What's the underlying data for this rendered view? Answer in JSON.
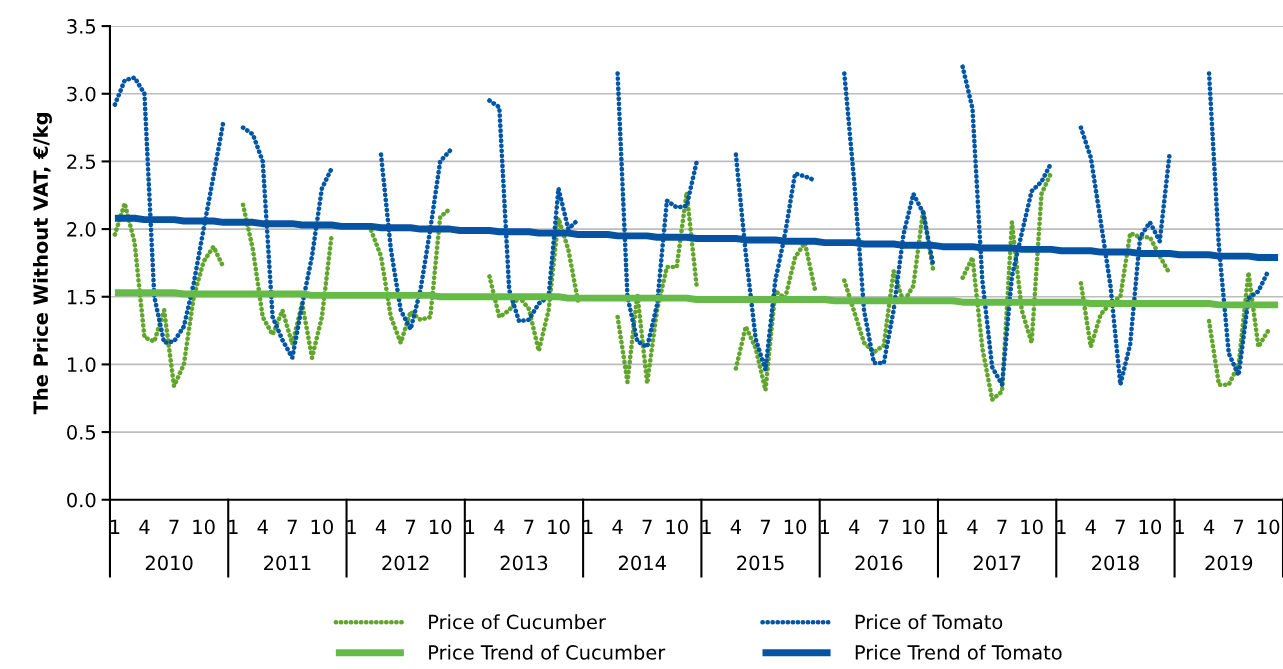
{
  "chart_data": {
    "type": "line",
    "ylabel": "The Price Without VAT, €/kg",
    "categories": [
      "1",
      null,
      null,
      "4",
      null,
      null,
      "7",
      null,
      null,
      "10",
      null,
      null,
      "1",
      null,
      null,
      "4",
      null,
      null,
      "7",
      null,
      null,
      "10",
      null,
      null,
      "1",
      null,
      null,
      "4",
      null,
      null,
      "7",
      null,
      null,
      "10",
      null,
      null,
      "1",
      null,
      null,
      "4",
      null,
      null,
      "7",
      null,
      null,
      "10",
      null,
      null,
      "1",
      null,
      null,
      "4",
      null,
      null,
      "7",
      null,
      null,
      "10",
      null,
      null,
      "1",
      null,
      null,
      "4",
      null,
      null,
      "7",
      null,
      null,
      "10",
      null,
      null,
      "1",
      null,
      null,
      "4",
      null,
      null,
      "7",
      null,
      null,
      "10",
      null,
      null,
      "1",
      null,
      null,
      "4",
      null,
      null,
      "7",
      null,
      null,
      "10",
      null,
      null,
      "1",
      null,
      null,
      "4",
      null,
      null,
      "7",
      null,
      null,
      "10",
      null,
      null,
      "1",
      null,
      null,
      "4",
      null,
      null,
      "7",
      null,
      null,
      "10",
      null
    ],
    "annotations": [
      "2010",
      "2011",
      "2012",
      "2013",
      "2014",
      "2015",
      "2016",
      "2017",
      "2018",
      "2019"
    ],
    "ylim": [
      0,
      3.5
    ],
    "yticks": [
      {
        "value": 0,
        "label": "0.0"
      },
      {
        "value": 0.5,
        "label": "0.5"
      },
      {
        "value": 1,
        "label": "1.0"
      },
      {
        "value": 1.5,
        "label": "1.5"
      },
      {
        "value": 2,
        "label": "2.0"
      },
      {
        "value": 2.5,
        "label": "2.5"
      },
      {
        "value": 3,
        "label": "3.0"
      },
      {
        "value": 3.5,
        "label": "3.5"
      }
    ],
    "grid": "y",
    "legend": "bottom",
    "marker": "none",
    "series": [
      {
        "name": "Price of Cucumber",
        "color": "#62a52c",
        "line_style": "dotted",
        "values": [
          1.96,
          2.19,
          1.9,
          1.2,
          1.17,
          1.4,
          0.84,
          1.0,
          1.5,
          1.76,
          1.87,
          1.72,
          null,
          2.18,
          1.85,
          1.35,
          1.22,
          1.4,
          1.15,
          1.45,
          1.05,
          1.35,
          1.96,
          null,
          null,
          null,
          1.99,
          1.8,
          1.35,
          1.16,
          1.39,
          1.33,
          1.35,
          2.09,
          2.15,
          null,
          null,
          null,
          1.65,
          1.35,
          1.4,
          1.5,
          1.41,
          1.1,
          1.4,
          2.08,
          1.85,
          1.46,
          null,
          null,
          null,
          1.35,
          0.87,
          1.52,
          0.86,
          1.4,
          1.72,
          1.72,
          2.27,
          1.59,
          null,
          null,
          null,
          0.97,
          1.28,
          1.12,
          0.81,
          1.54,
          1.49,
          1.79,
          1.9,
          1.56,
          null,
          null,
          1.62,
          1.39,
          1.16,
          1.09,
          1.14,
          1.69,
          1.46,
          1.58,
          2.14,
          1.7,
          null,
          null,
          1.64,
          1.79,
          1.12,
          0.74,
          0.8,
          2.05,
          1.4,
          1.16,
          2.26,
          2.42,
          null,
          null,
          1.6,
          1.13,
          1.37,
          1.45,
          1.5,
          1.97,
          1.94,
          1.94,
          1.8,
          1.67,
          null,
          null,
          null,
          1.32,
          0.85,
          0.85,
          1.0,
          1.68,
          1.13,
          1.25,
          null
        ]
      },
      {
        "name": "Price of Tomato",
        "color": "#0055a5",
        "line_style": "dotted",
        "values": [
          2.92,
          3.1,
          3.12,
          3.0,
          1.5,
          1.16,
          1.17,
          1.28,
          1.6,
          2.0,
          2.39,
          2.79,
          null,
          2.75,
          2.7,
          2.5,
          1.35,
          1.18,
          1.05,
          1.44,
          1.8,
          2.3,
          2.45,
          null,
          null,
          null,
          null,
          2.55,
          1.85,
          1.4,
          1.26,
          1.55,
          2.0,
          2.5,
          2.58,
          null,
          null,
          null,
          2.95,
          2.9,
          1.55,
          1.32,
          1.33,
          1.45,
          1.5,
          2.3,
          2.0,
          2.07,
          null,
          null,
          null,
          3.15,
          1.5,
          1.17,
          1.13,
          1.44,
          2.21,
          2.16,
          2.17,
          2.49,
          null,
          null,
          null,
          2.55,
          1.82,
          1.19,
          0.96,
          1.62,
          1.97,
          2.41,
          2.39,
          2.36,
          null,
          null,
          3.15,
          2.35,
          1.4,
          1.01,
          1.01,
          1.4,
          1.96,
          2.26,
          2.12,
          1.74,
          null,
          null,
          3.2,
          2.89,
          1.62,
          0.98,
          0.85,
          1.65,
          1.97,
          2.28,
          2.35,
          2.49,
          null,
          null,
          2.75,
          2.53,
          2.06,
          1.58,
          0.85,
          1.15,
          1.94,
          2.05,
          1.91,
          2.56,
          null,
          null,
          null,
          3.15,
          1.87,
          1.08,
          0.92,
          1.49,
          1.54,
          1.69,
          null
        ]
      },
      {
        "name": "Price Trend of Cucumber",
        "color": "#66bb48",
        "line_style": "solid",
        "values": [
          1.53,
          1.53,
          1.53,
          1.53,
          1.53,
          1.53,
          1.53,
          1.52,
          1.52,
          1.52,
          1.52,
          1.52,
          1.52,
          1.52,
          1.52,
          1.52,
          1.52,
          1.52,
          1.52,
          1.52,
          1.51,
          1.51,
          1.51,
          1.51,
          1.51,
          1.51,
          1.51,
          1.51,
          1.51,
          1.51,
          1.51,
          1.51,
          1.51,
          1.5,
          1.5,
          1.5,
          1.5,
          1.5,
          1.5,
          1.5,
          1.5,
          1.5,
          1.5,
          1.5,
          1.5,
          1.5,
          1.49,
          1.49,
          1.49,
          1.49,
          1.49,
          1.49,
          1.49,
          1.49,
          1.49,
          1.49,
          1.49,
          1.49,
          1.49,
          1.48,
          1.48,
          1.48,
          1.48,
          1.48,
          1.48,
          1.48,
          1.48,
          1.48,
          1.48,
          1.48,
          1.48,
          1.48,
          1.48,
          1.47,
          1.47,
          1.47,
          1.47,
          1.47,
          1.47,
          1.47,
          1.47,
          1.47,
          1.47,
          1.47,
          1.47,
          1.47,
          1.46,
          1.46,
          1.46,
          1.46,
          1.46,
          1.46,
          1.46,
          1.46,
          1.46,
          1.46,
          1.46,
          1.46,
          1.46,
          1.45,
          1.45,
          1.45,
          1.45,
          1.45,
          1.45,
          1.45,
          1.45,
          1.45,
          1.45,
          1.45,
          1.45,
          1.45,
          1.44,
          1.44,
          1.44,
          1.44,
          1.44,
          1.44,
          1.44
        ]
      },
      {
        "name": "Price Trend of Tomato",
        "color": "#0753a3",
        "line_style": "solid",
        "values": [
          2.08,
          2.08,
          2.08,
          2.07,
          2.07,
          2.07,
          2.07,
          2.06,
          2.06,
          2.06,
          2.06,
          2.05,
          2.05,
          2.05,
          2.05,
          2.04,
          2.04,
          2.04,
          2.04,
          2.03,
          2.03,
          2.03,
          2.03,
          2.02,
          2.02,
          2.02,
          2.02,
          2.01,
          2.01,
          2.01,
          2.01,
          2.0,
          2.0,
          2.0,
          2.0,
          1.99,
          1.99,
          1.99,
          1.99,
          1.98,
          1.98,
          1.98,
          1.98,
          1.97,
          1.97,
          1.97,
          1.97,
          1.96,
          1.96,
          1.96,
          1.96,
          1.95,
          1.95,
          1.95,
          1.95,
          1.94,
          1.94,
          1.94,
          1.94,
          1.93,
          1.93,
          1.93,
          1.93,
          1.93,
          1.92,
          1.92,
          1.92,
          1.92,
          1.91,
          1.91,
          1.91,
          1.91,
          1.9,
          1.9,
          1.9,
          1.9,
          1.89,
          1.89,
          1.89,
          1.89,
          1.88,
          1.88,
          1.88,
          1.88,
          1.87,
          1.87,
          1.87,
          1.87,
          1.86,
          1.86,
          1.86,
          1.86,
          1.85,
          1.85,
          1.85,
          1.85,
          1.84,
          1.84,
          1.84,
          1.84,
          1.83,
          1.83,
          1.83,
          1.83,
          1.82,
          1.82,
          1.82,
          1.82,
          1.81,
          1.81,
          1.81,
          1.81,
          1.8,
          1.8,
          1.8,
          1.8,
          1.79,
          1.79,
          1.79
        ]
      }
    ]
  }
}
